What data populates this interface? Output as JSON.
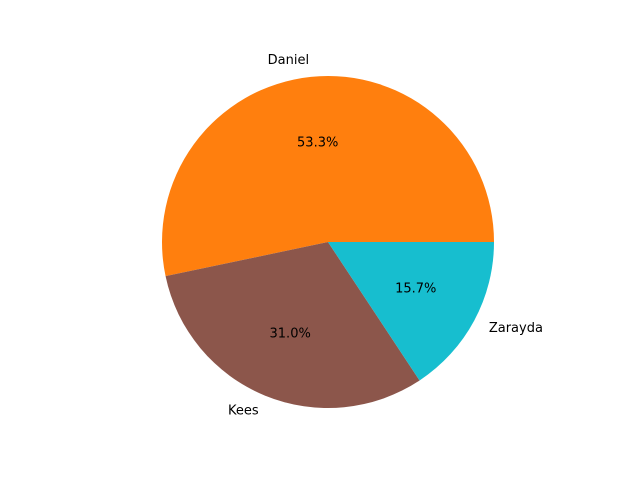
{
  "chart_data": {
    "type": "pie",
    "categories": [
      "Daniel",
      "Kees",
      "Zarayda"
    ],
    "values": [
      53.3,
      31.0,
      15.7
    ],
    "percent_labels": [
      "53.3%",
      "31.0%",
      "15.7%"
    ],
    "colors": [
      "#ff7f0e",
      "#8c564b",
      "#17becf"
    ],
    "start_angle_deg": 0,
    "direction": "counterclockwise",
    "title": ""
  }
}
